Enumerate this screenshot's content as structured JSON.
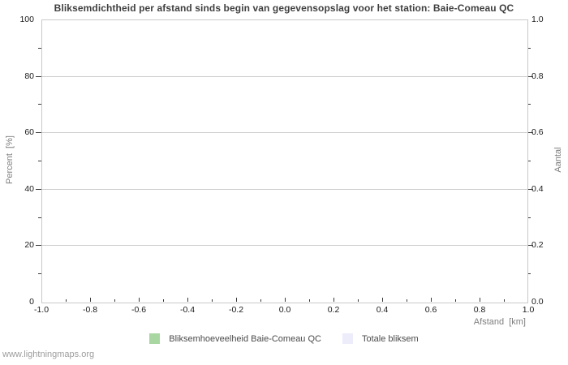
{
  "chart_data": {
    "type": "bar",
    "title": "Bliksemdichtheid per afstand sinds begin van gegevensopslag voor het station: Baie-Comeau QC",
    "xlabel": "Afstand  [km]",
    "ylabel_left": "Percent  [%]",
    "ylabel_right": "Aantal",
    "xlim": [
      -1.0,
      1.0
    ],
    "ylim_left": [
      0,
      100
    ],
    "ylim_right": [
      0.0,
      1.0
    ],
    "x_tick_labels": [
      "-1.0",
      "-0.8",
      "-0.6",
      "-0.4",
      "-0.2",
      "0.0",
      "0.2",
      "0.4",
      "0.6",
      "0.8",
      "1.0"
    ],
    "y_tick_labels_left": [
      "100",
      "80",
      "60",
      "40",
      "20",
      "0"
    ],
    "y_tick_labels_right": [
      "1.0",
      "0.8",
      "0.6",
      "0.4",
      "0.2",
      "0.0"
    ],
    "grid": "horizontal major gridlines only, minor ticks without gridlines",
    "legend_position": "bottom-center",
    "series": [
      {
        "name": "Bliksemhoeveelheid Baie-Comeau QC",
        "color": "#a9d7a2",
        "values": []
      },
      {
        "name": "Totale bliksem",
        "color": "#ececfa",
        "values": []
      }
    ],
    "note": "empty chart - no data bars plotted",
    "colors": {
      "grid": "#cdcdcd",
      "axis_border": "#c9c9c9",
      "tick_mark": "#3a3a3a",
      "tick_label": "#1a1a1a",
      "axis_label": "#7e7e7e",
      "title": "#3f3f3f",
      "legend_text": "#4a4a4a",
      "watermark_text": "#9d9d9d"
    }
  },
  "watermark": "www.lightningmaps.org"
}
